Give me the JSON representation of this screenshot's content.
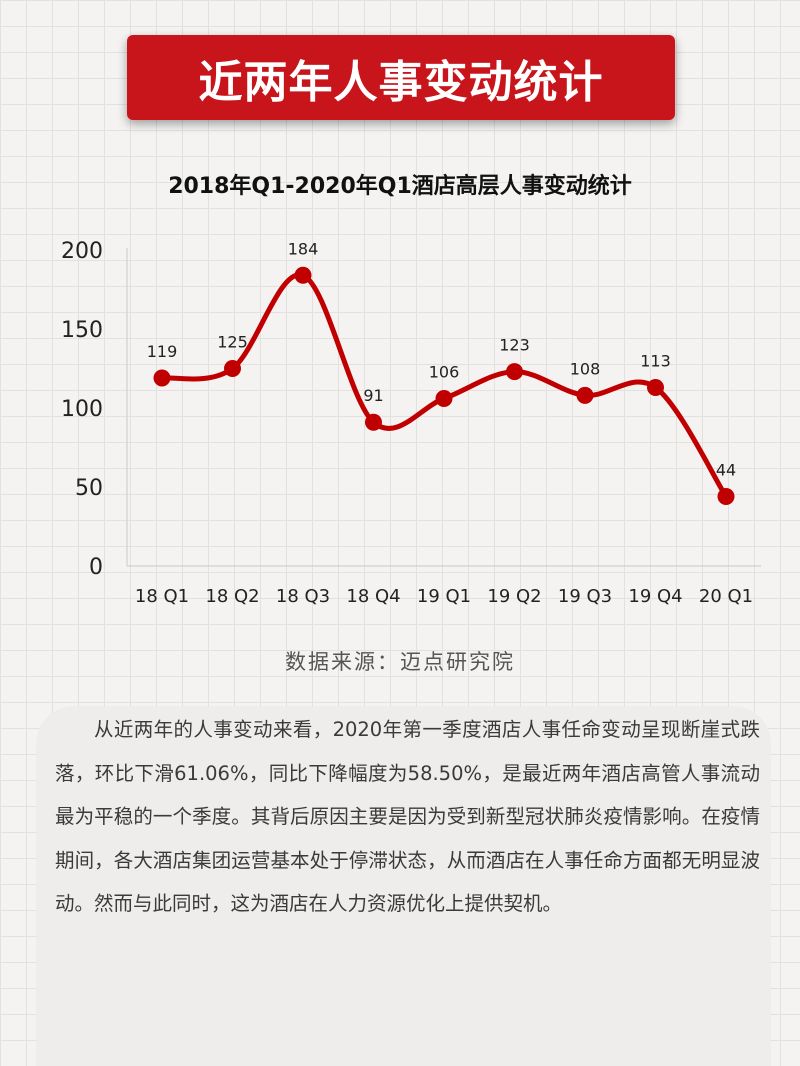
{
  "banner": {
    "title": "近两年人事变动统计"
  },
  "source": "数据来源：迈点研究院",
  "description": "从近两年的人事变动来看，2020年第一季度酒店人事任命变动呈现断崖式跌落，环比下滑61.06%，同比下降幅度为58.50%，是最近两年酒店高管人事流动最为平稳的一个季度。其背后原因主要是因为受到新型冠状肺炎疫情影响。在疫情期间，各大酒店集团运营基本处于停滞状态，从而酒店在人事任命方面都无明显波动。然而与此同时，这为酒店在人力资源优化上提供契机。",
  "chart_data": {
    "type": "line",
    "title": "2018年Q1-2020年Q1酒店高层人事变动统计",
    "categories": [
      "18 Q1",
      "18 Q2",
      "18 Q3",
      "18 Q4",
      "19 Q1",
      "19 Q2",
      "19 Q3",
      "19 Q4",
      "20 Q1"
    ],
    "values": [
      119,
      125,
      184,
      91,
      106,
      123,
      108,
      113,
      44
    ],
    "yticks": [
      0,
      50,
      100,
      150,
      200
    ],
    "ylim": [
      0,
      200
    ],
    "smooth": true,
    "data_labels": true,
    "grid": false,
    "color": "#c00000"
  }
}
